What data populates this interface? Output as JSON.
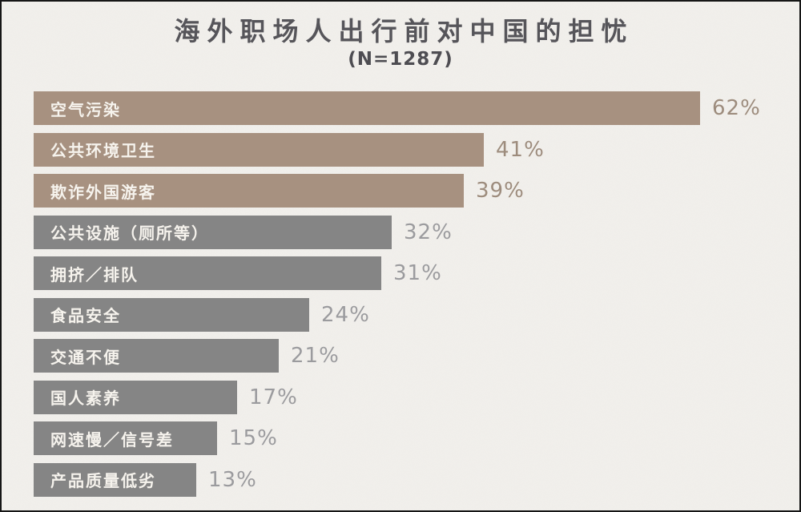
{
  "page": {
    "background_color": "#f0eeea",
    "border_color": "#161616"
  },
  "header": {
    "title": "海外职场人出行前对中国的担忧",
    "subtitle": "(N=1287)",
    "title_color": "#56555a"
  },
  "chart_data": {
    "type": "bar",
    "orientation": "horizontal",
    "title": "海外职场人出行前对中国的担忧",
    "subtitle": "(N=1287)",
    "sample_size_label": "N=1287",
    "categories": [
      "空气污染",
      "公共环境卫生",
      "欺诈外国游客",
      "公共设施（厕所等）",
      "拥挤／排队",
      "食品安全",
      "交通不便",
      "国人素养",
      "网速慢／信号差",
      "产品质量低劣"
    ],
    "values": [
      62,
      41,
      39,
      32,
      31,
      24,
      21,
      17,
      15,
      13
    ],
    "value_labels": [
      "62%",
      "41%",
      "39%",
      "32%",
      "31%",
      "24%",
      "21%",
      "17%",
      "15%",
      "13%"
    ],
    "unit": "%",
    "xlim": [
      0,
      65
    ],
    "grid": false,
    "legend": false,
    "highlighted_indices": [
      0,
      1,
      2
    ],
    "highlight_bar_color": "#a79180",
    "normal_bar_color": "#858585",
    "highlight_value_label_color": "#9d8c7d",
    "normal_value_label_color": "#9b9b9e",
    "bar_text_color": "#f6f3ed"
  }
}
